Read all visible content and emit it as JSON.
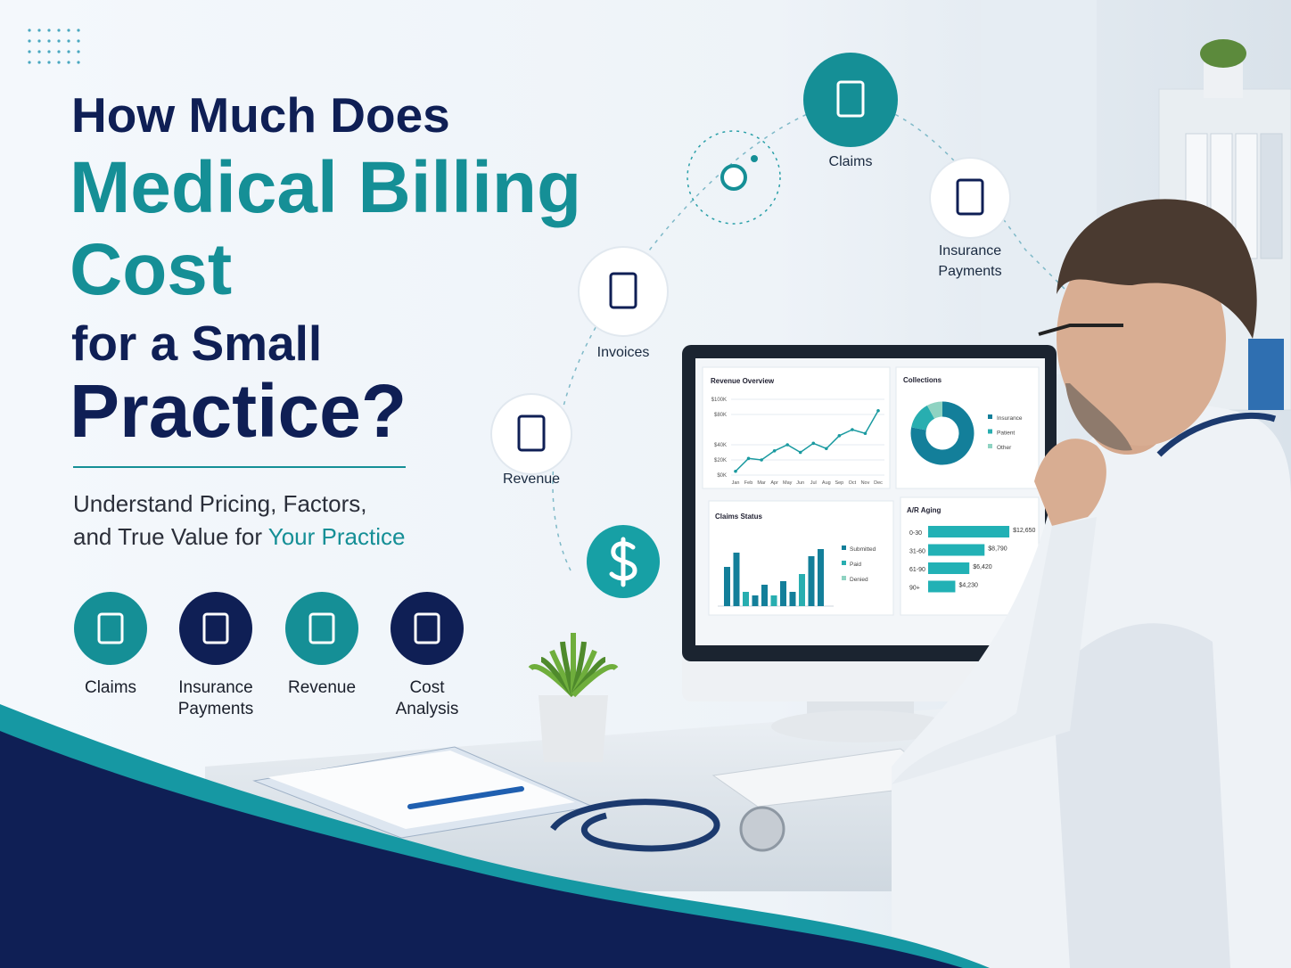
{
  "header": {
    "line1": "How Much Does",
    "line2": "Medical Billing",
    "line3": "Cost",
    "line4": "for a Small",
    "line5": "Practice?"
  },
  "subtitle": {
    "line1": "Understand Pricing, Factors,",
    "line2_prefix": "and True Value for",
    "line2_highlight": "Your Practice"
  },
  "features": [
    {
      "lines": [
        "Claims"
      ]
    },
    {
      "lines": [
        "Insurance",
        "Payments"
      ]
    },
    {
      "lines": [
        "Revenue"
      ]
    },
    {
      "lines": [
        "Cost",
        "Analysis"
      ]
    }
  ],
  "orbit": [
    {
      "lines": [
        "Claims"
      ]
    },
    {
      "lines": [
        "Insurance",
        "Payments"
      ]
    },
    {
      "lines": [
        "Invoices"
      ]
    },
    {
      "lines": [
        "Revenue"
      ]
    }
  ],
  "dashboard": {
    "revenue_overview": {
      "type": "line",
      "title": "Revenue Overview",
      "color": "#1a9aa0",
      "categories": [
        "Jan",
        "Feb",
        "Mar",
        "Apr",
        "May",
        "Jun",
        "Jul",
        "Aug",
        "Sep",
        "Oct",
        "Nov",
        "Dec"
      ],
      "values": [
        5000,
        22000,
        20000,
        32000,
        40000,
        30000,
        42000,
        35000,
        52000,
        60000,
        55000,
        85000
      ],
      "ylim": [
        0,
        100000
      ],
      "yticks": [
        {
          "value": 0,
          "label": "$0K"
        },
        {
          "value": 20000,
          "label": "$20K"
        },
        {
          "value": 40000,
          "label": "$40K"
        },
        {
          "value": 80000,
          "label": "$80K"
        },
        {
          "value": 100000,
          "label": "$100K"
        }
      ]
    },
    "collections": {
      "type": "pie",
      "title": "Collections",
      "categories": [
        "Insurance",
        "Patient",
        "Other"
      ],
      "values": [
        78,
        14,
        8
      ],
      "colors": [
        "#137f9a",
        "#28aeb0",
        "#8fd3c2"
      ]
    },
    "claims_status": {
      "type": "bar",
      "title": "Claims Status",
      "legend": [
        {
          "name": "Submitted",
          "color": "#137f9a"
        },
        {
          "name": "Paid",
          "color": "#28aeb0"
        },
        {
          "name": "Denied",
          "color": "#8fd3c2"
        }
      ],
      "values": [
        55,
        75,
        20,
        15,
        30,
        15,
        35,
        20,
        45,
        70,
        80
      ],
      "ylim": [
        0,
        100
      ],
      "color": "#1a9aa0"
    },
    "ar_aging": {
      "type": "hbar",
      "title": "A/R Aging",
      "color": "#22b1b5",
      "categories": [
        "0-30",
        "31-60",
        "61-90",
        "90+"
      ],
      "values": [
        12650,
        8790,
        6420,
        4230
      ],
      "value_labels": [
        "$12,650",
        "$8,790",
        "$6,420",
        "$4,230"
      ]
    }
  }
}
